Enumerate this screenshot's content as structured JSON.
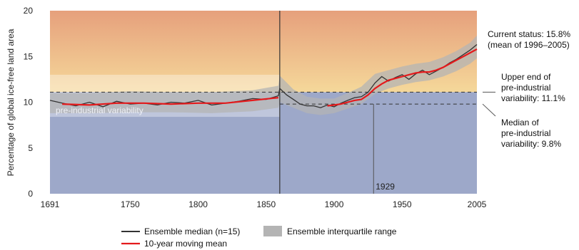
{
  "chart_data": {
    "type": "line",
    "title": "",
    "xlabel": "",
    "ylabel": "Percentage of global ice-free land area",
    "xlim": [
      1691,
      2005
    ],
    "ylim": [
      0,
      20
    ],
    "xticks": [
      1691,
      1750,
      1800,
      1850,
      1900,
      1950,
      2005
    ],
    "yticks": [
      0,
      5,
      10,
      15,
      20
    ],
    "grid": false,
    "legend_placement": "bottom",
    "reconstruction_split_year": 1860,
    "marked_year": 1929,
    "marked_year_label": "1929",
    "preindustrial_band": {
      "median": 9.8,
      "upper": 11.1,
      "low": 8.4,
      "high": 13.0,
      "label": "pre-industrial variability"
    },
    "annotations": {
      "current": [
        "Current status: 15.8%",
        "(mean of 1996–2005)"
      ],
      "upper": [
        "Upper end of",
        "pre-industrial",
        "variability: 11.1%"
      ],
      "median": [
        "Median of",
        "pre-industrial",
        "variability: 9.8%"
      ]
    },
    "series": [
      {
        "name": "Ensemble median (n=15)",
        "color": "#333333",
        "x": [
          1691,
          1700,
          1710,
          1720,
          1730,
          1740,
          1750,
          1760,
          1770,
          1780,
          1790,
          1800,
          1810,
          1820,
          1830,
          1840,
          1850,
          1859,
          1860,
          1865,
          1870,
          1875,
          1880,
          1885,
          1890,
          1895,
          1900,
          1905,
          1910,
          1915,
          1920,
          1925,
          1930,
          1935,
          1940,
          1945,
          1950,
          1955,
          1960,
          1965,
          1970,
          1975,
          1980,
          1985,
          1990,
          1995,
          2000,
          2005
        ],
        "y": [
          10.2,
          9.9,
          9.6,
          10.0,
          9.5,
          10.1,
          9.8,
          9.9,
          9.7,
          10.0,
          9.9,
          10.2,
          9.7,
          9.9,
          10.1,
          10.4,
          10.3,
          10.7,
          11.5,
          10.8,
          10.3,
          9.8,
          9.6,
          9.6,
          9.4,
          9.7,
          9.5,
          9.9,
          10.2,
          10.5,
          10.6,
          11.1,
          12.1,
          12.8,
          12.3,
          12.7,
          13.0,
          12.5,
          13.1,
          13.5,
          13.0,
          13.4,
          13.8,
          14.3,
          14.7,
          15.2,
          15.7,
          16.3
        ]
      },
      {
        "name": "10-year moving mean",
        "color": "#e41a1c",
        "x": [
          1700,
          1720,
          1740,
          1760,
          1780,
          1800,
          1820,
          1840,
          1859,
          1895,
          1900,
          1905,
          1910,
          1915,
          1920,
          1925,
          1930,
          1935,
          1940,
          1945,
          1950,
          1955,
          1960,
          1965,
          1970,
          1975,
          1980,
          1985,
          1990,
          1995,
          2000,
          2005
        ],
        "y": [
          9.8,
          9.7,
          9.9,
          9.9,
          9.8,
          9.9,
          9.9,
          10.2,
          10.5,
          9.6,
          9.7,
          9.8,
          10.0,
          10.2,
          10.3,
          10.8,
          11.5,
          12.0,
          12.4,
          12.6,
          12.8,
          13.0,
          13.2,
          13.3,
          13.3,
          13.5,
          13.8,
          14.2,
          14.6,
          15.0,
          15.4,
          15.8
        ]
      }
    ],
    "interquartile_range": {
      "name": "Ensemble interquartile range",
      "color": "#b4b4b4",
      "x": [
        1691,
        1720,
        1750,
        1780,
        1810,
        1840,
        1859,
        1860,
        1870,
        1880,
        1890,
        1900,
        1910,
        1920,
        1930,
        1940,
        1950,
        1960,
        1970,
        1980,
        1990,
        2000,
        2005
      ],
      "lower": [
        8.8,
        8.8,
        8.9,
        8.9,
        8.8,
        9.0,
        9.4,
        10.0,
        9.4,
        8.8,
        8.6,
        8.8,
        9.3,
        9.8,
        10.9,
        11.5,
        11.9,
        12.2,
        12.4,
        12.8,
        13.4,
        14.2,
        14.8
      ],
      "upper": [
        11.0,
        11.0,
        11.2,
        11.1,
        11.1,
        11.3,
        11.8,
        12.9,
        11.4,
        10.6,
        10.4,
        10.4,
        11.0,
        11.7,
        13.1,
        13.5,
        13.9,
        14.2,
        14.4,
        14.9,
        15.6,
        16.5,
        17.3
      ]
    },
    "colors": {
      "risk_top": "#e6a07c",
      "risk_mid": "#f5d89a",
      "safe": "#9da8c9",
      "band": "#ffffff",
      "boundary_line": "#333333"
    }
  }
}
